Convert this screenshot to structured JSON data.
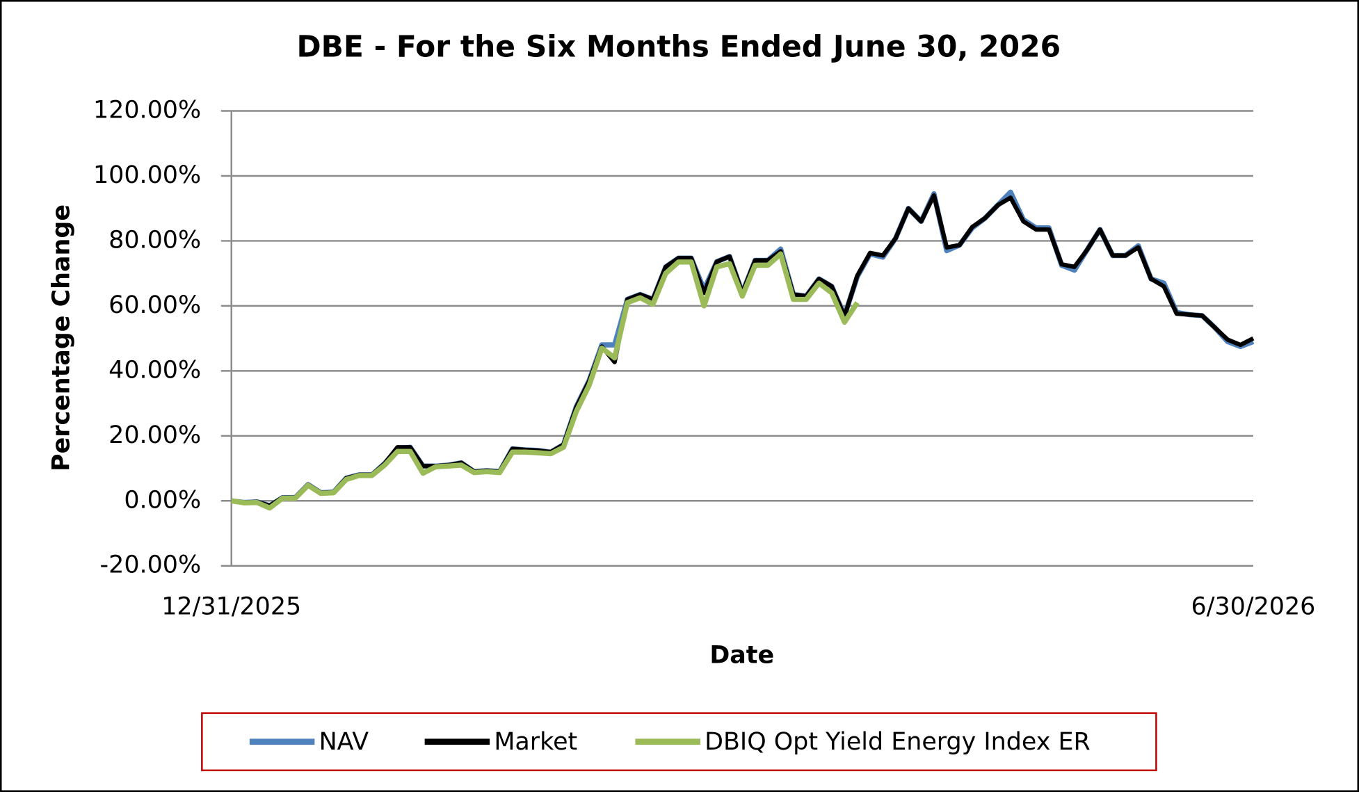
{
  "chart_data": {
    "type": "line",
    "title": "DBE - For the Six Months Ended June 30, 2026",
    "x_label": "Date",
    "y_label": "Percentage Change",
    "categories": [
      "12/31/2025",
      null,
      null,
      null,
      null,
      null,
      null,
      null,
      null,
      null,
      null,
      null,
      null,
      null,
      null,
      null,
      null,
      null,
      null,
      null,
      null,
      null,
      null,
      null,
      null,
      null,
      null,
      null,
      null,
      null,
      null,
      null,
      null,
      null,
      null,
      null,
      null,
      null,
      null,
      null,
      null,
      null,
      null,
      null,
      null,
      null,
      null,
      null,
      null,
      null,
      null,
      null,
      null,
      null,
      null,
      null,
      null,
      null,
      null,
      null,
      null,
      null,
      null,
      null,
      null,
      null,
      null,
      null,
      null,
      null,
      null,
      null,
      null,
      null,
      null,
      null,
      null,
      null,
      null,
      null,
      "6/30/2026"
    ],
    "series": [
      {
        "name": "NAV",
        "color": "#4f81bd",
        "values": [
          0,
          -0.5,
          -0.3,
          -1.5,
          1,
          1,
          5,
          2.5,
          2.7,
          7,
          8,
          8,
          11.5,
          16,
          16.5,
          10.7,
          10.7,
          11,
          11.7,
          9,
          9.3,
          9,
          16,
          15.7,
          15.5,
          15,
          17.3,
          29,
          37,
          48,
          48,
          62,
          63.5,
          62,
          72,
          74.7,
          74.7,
          65,
          73.6,
          75.2,
          64,
          74,
          74,
          77.5,
          63.5,
          63,
          68.3,
          66,
          57,
          69,
          76,
          75,
          80.8,
          90,
          86,
          94.5,
          77,
          78.7,
          84,
          87,
          91,
          95,
          86.5,
          84,
          84,
          72.5,
          71,
          77.3,
          83.5,
          75.5,
          75.5,
          78.5,
          68.3,
          67,
          58,
          57.3,
          57,
          53.3,
          49,
          47.5,
          49
        ]
      },
      {
        "name": "Market",
        "color": "#000000",
        "values": [
          0,
          -0.5,
          -0.3,
          -1.5,
          1,
          1,
          5,
          2.5,
          2.7,
          7,
          8,
          8,
          11.5,
          16.5,
          16.5,
          10.7,
          10.7,
          11,
          11.7,
          9,
          9.3,
          9,
          16,
          15.7,
          15.5,
          15,
          17.3,
          28.8,
          36.8,
          47.5,
          42.7,
          62,
          63.5,
          62,
          72,
          74.7,
          74.7,
          64,
          73.6,
          75.2,
          64,
          74,
          74,
          76.8,
          63.5,
          63,
          68.3,
          66,
          56.8,
          69.3,
          76.3,
          75.5,
          80.8,
          90,
          86,
          94,
          78,
          78.7,
          84.3,
          87,
          91,
          93.3,
          86,
          83.5,
          83.5,
          72.8,
          72,
          77.3,
          83.5,
          75.5,
          75.5,
          78,
          68.3,
          66,
          57.6,
          57.3,
          57,
          53.3,
          49.6,
          48,
          50
        ]
      },
      {
        "name": "DBIQ Opt Yield Energy Index ER",
        "color": "#9bbb59",
        "values": [
          0,
          -0.6,
          -0.5,
          -2.2,
          0.8,
          0.8,
          4.8,
          2.3,
          2.5,
          6.6,
          7.8,
          7.8,
          11,
          15.2,
          15.2,
          8.5,
          10.5,
          10.7,
          11,
          8.7,
          9,
          8.7,
          15,
          15,
          14.8,
          14.5,
          16.5,
          27.5,
          35.5,
          47,
          44,
          61,
          62.5,
          60.5,
          70,
          73.5,
          73.5,
          60,
          72,
          73,
          63,
          72.5,
          72.5,
          76,
          62,
          62,
          67,
          64,
          55,
          61,
          null,
          null,
          null,
          null,
          null,
          null,
          null,
          null,
          null,
          null,
          null,
          null,
          null,
          null,
          null,
          null,
          null,
          null,
          null,
          null,
          null,
          null,
          null,
          null,
          null,
          null,
          null,
          null,
          null,
          null,
          null
        ]
      }
    ],
    "ylim": [
      -20,
      120
    ],
    "yticks": [
      {
        "value": -20,
        "label": "-20.00%"
      },
      {
        "value": 0,
        "label": "0.00%"
      },
      {
        "value": 20,
        "label": "20.00%"
      },
      {
        "value": 40,
        "label": "40.00%"
      },
      {
        "value": 60,
        "label": "60.00%"
      },
      {
        "value": 80,
        "label": "80.00%"
      },
      {
        "value": 100,
        "label": "100.00%"
      },
      {
        "value": 120,
        "label": "120.00%"
      }
    ],
    "grid": true,
    "legend": "bottom"
  }
}
